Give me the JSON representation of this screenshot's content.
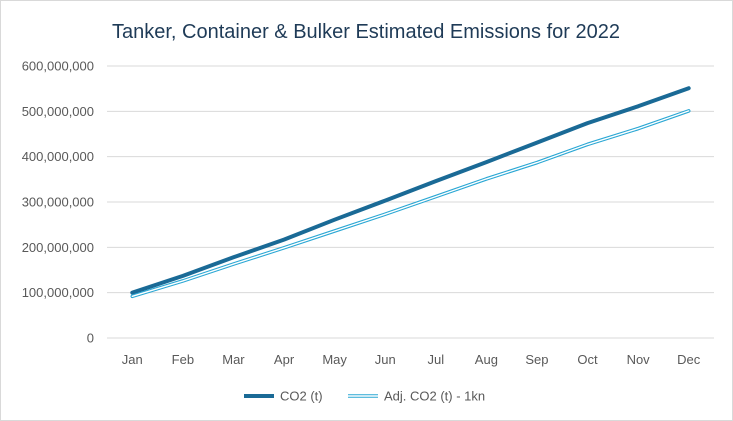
{
  "chart_data": {
    "type": "line",
    "title": "Tanker, Container & Bulker Estimated Emissions for 2022",
    "xlabel": "",
    "ylabel": "",
    "categories": [
      "Jan",
      "Feb",
      "Mar",
      "Apr",
      "May",
      "Jun",
      "Jul",
      "Aug",
      "Sep",
      "Oct",
      "Nov",
      "Dec"
    ],
    "ylim": [
      0,
      600000000
    ],
    "yticks": [
      0,
      100000000,
      200000000,
      300000000,
      400000000,
      500000000,
      600000000
    ],
    "ytick_labels": [
      "0",
      "100,000,000",
      "200,000,000",
      "300,000,000",
      "400,000,000",
      "500,000,000",
      "600,000,000"
    ],
    "grid": true,
    "legend_position": "bottom",
    "series": [
      {
        "name": "CO2 (t)",
        "color": "#1a6a96",
        "style": "thick",
        "values": [
          100000000,
          137000000,
          178000000,
          217000000,
          261000000,
          303000000,
          346000000,
          388000000,
          431000000,
          474000000,
          511000000,
          551000000
        ]
      },
      {
        "name": "Adj. CO2 (t) - 1kn",
        "color": "#2aa7d4",
        "style": "double",
        "values": [
          92000000,
          126000000,
          163000000,
          199000000,
          236000000,
          273000000,
          312000000,
          351000000,
          387000000,
          427000000,
          462000000,
          501000000
        ]
      }
    ]
  }
}
